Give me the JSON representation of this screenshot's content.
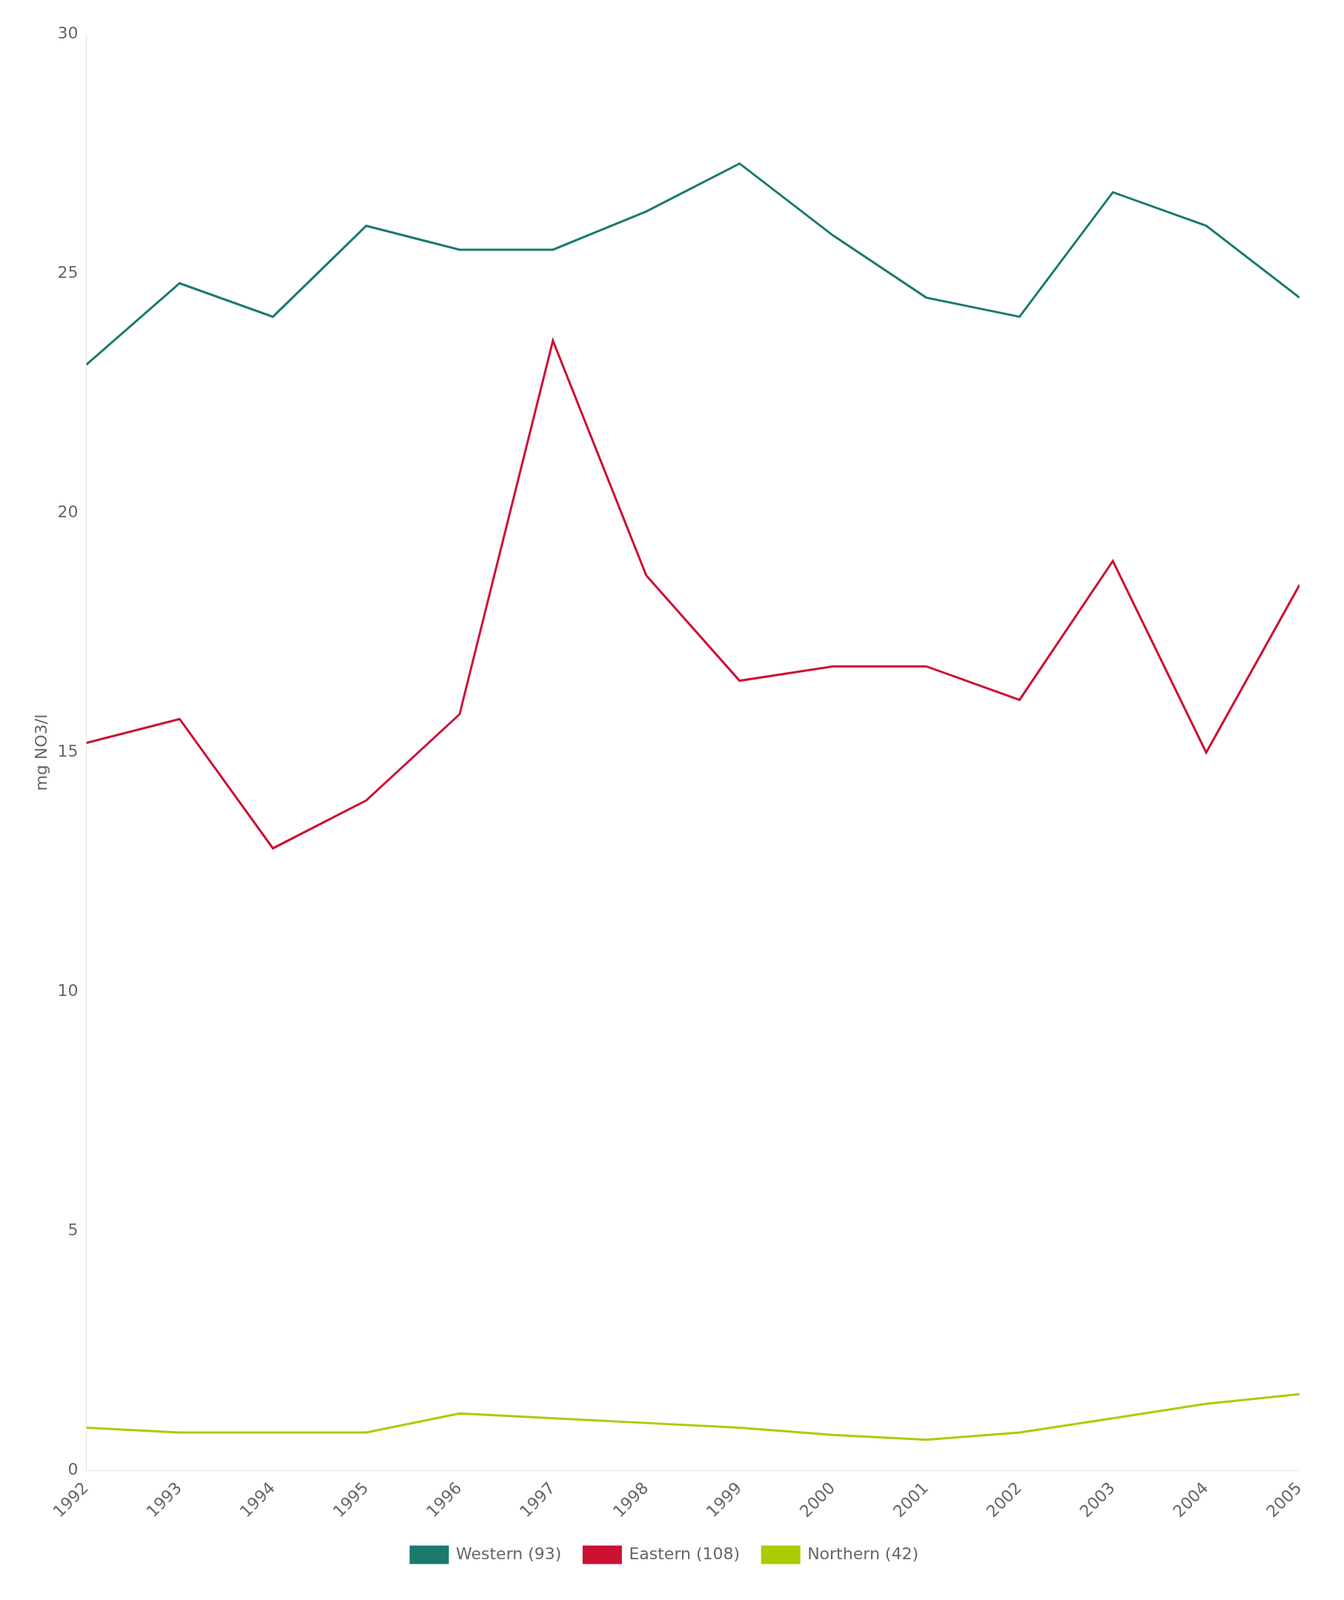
{
  "chart_data": {
    "type": "line",
    "ylabel": "mg NO3/l",
    "x": [
      1992,
      1993,
      1994,
      1995,
      1996,
      1997,
      1998,
      1999,
      2000,
      2001,
      2002,
      2003,
      2004,
      2005
    ],
    "series": [
      {
        "name": "Western (93)",
        "color": "#1a7a6e",
        "values": [
          23.1,
          24.8,
          24.1,
          26.0,
          25.5,
          25.5,
          26.3,
          27.3,
          25.8,
          24.5,
          24.1,
          26.7,
          26.0,
          24.5
        ]
      },
      {
        "name": "Eastern (108)",
        "color": "#cc1133",
        "values": [
          15.2,
          15.7,
          13.0,
          14.0,
          15.8,
          23.6,
          18.7,
          16.5,
          16.8,
          16.8,
          16.1,
          19.0,
          15.0,
          18.5
        ]
      },
      {
        "name": "Northern (42)",
        "color": "#aacc00",
        "values": [
          0.9,
          0.8,
          0.8,
          0.8,
          1.2,
          1.1,
          1.0,
          0.9,
          0.75,
          0.65,
          0.8,
          1.1,
          1.4,
          1.6
        ]
      }
    ],
    "xlim": [
      1992,
      2005
    ],
    "xticks": [
      1992,
      1993,
      1994,
      1995,
      1996,
      1997,
      1998,
      1999,
      2000,
      2001,
      2002,
      2003,
      2004,
      2005
    ],
    "ylim": [
      0,
      30
    ],
    "yticks": [
      0,
      5,
      10,
      15,
      20,
      25,
      30
    ],
    "grid": false,
    "legend": "bottom"
  }
}
